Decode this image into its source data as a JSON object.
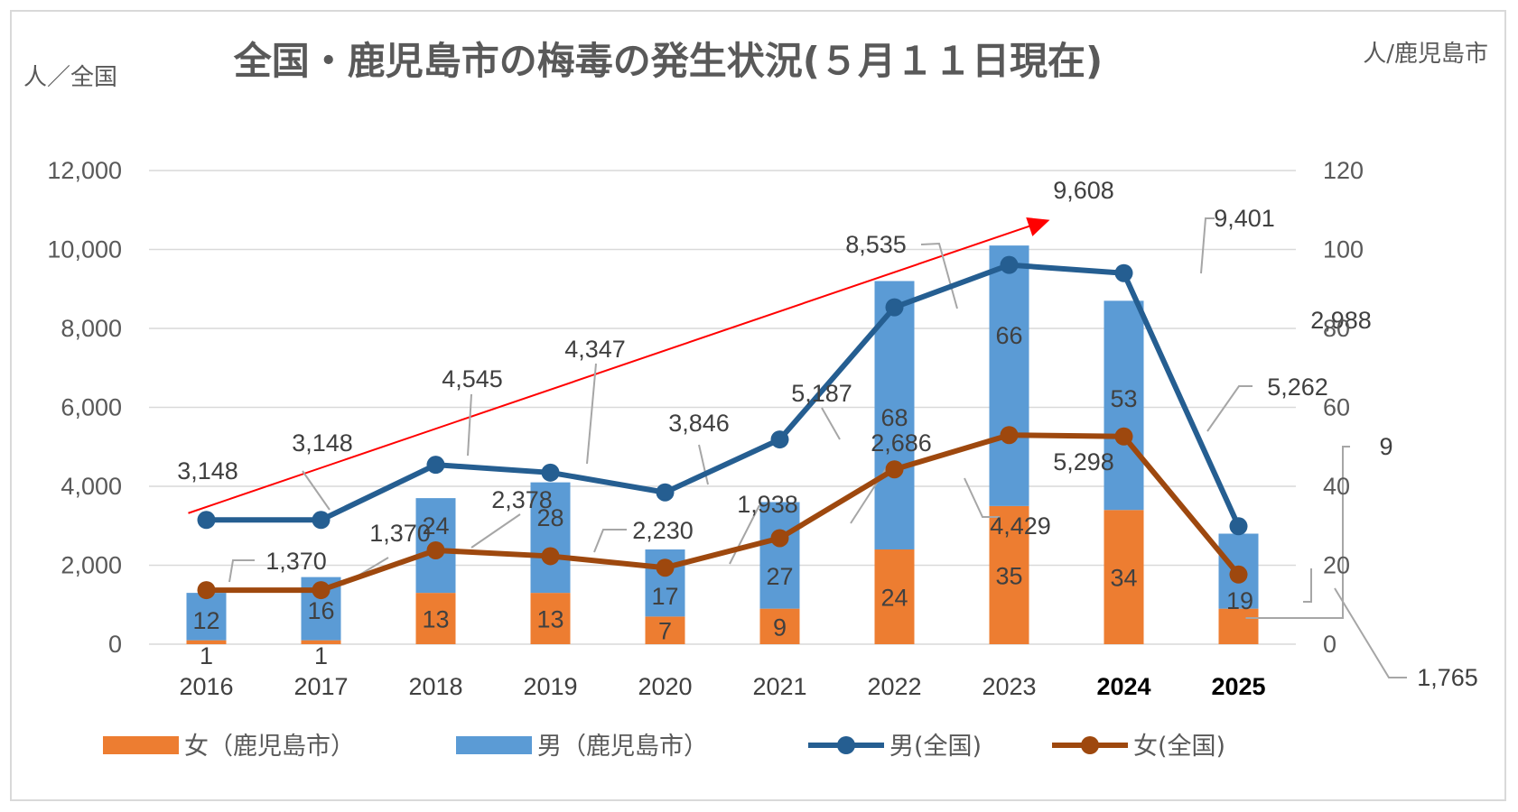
{
  "title": "全国・鹿児島市の梅毒の発生状況(５月１１日現在)",
  "left_axis_unit": "人／全国",
  "right_axis_unit": "人/鹿児島市",
  "chart_data": {
    "type": "bar+line",
    "categories": [
      "2016",
      "2017",
      "2018",
      "2019",
      "2020",
      "2021",
      "2022",
      "2023",
      "2024",
      "2025"
    ],
    "bold_categories": [
      "2024",
      "2025"
    ],
    "left_axis": {
      "min": 0,
      "max": 12000,
      "ticks": [
        "0",
        "2,000",
        "4,000",
        "6,000",
        "8,000",
        "10,000",
        "12,000"
      ]
    },
    "right_axis": {
      "min": 0,
      "max": 120,
      "ticks": [
        "0",
        "20",
        "40",
        "60",
        "80",
        "100",
        "120"
      ]
    },
    "grid": true,
    "legend_position": "bottom",
    "bar_series": [
      {
        "name": "女（鹿児島市）",
        "axis": "right",
        "color": "#ed7d31",
        "values": [
          1,
          1,
          13,
          13,
          7,
          9,
          24,
          35,
          34,
          9
        ],
        "labels": [
          "1",
          "1",
          "13",
          "13",
          "7",
          "9",
          "24",
          "35",
          "34",
          "9"
        ]
      },
      {
        "name": "男（鹿児島市）",
        "axis": "right",
        "color": "#5b9bd5",
        "values": [
          12,
          16,
          24,
          28,
          17,
          27,
          68,
          66,
          53,
          19
        ],
        "labels": [
          "12",
          "16",
          "24",
          "28",
          "17",
          "27",
          "68",
          "66",
          "53",
          "19"
        ]
      }
    ],
    "line_series": [
      {
        "name": "男(全国)",
        "axis": "left",
        "color": "#255e91",
        "values": [
          3148,
          3148,
          4545,
          4347,
          3846,
          5187,
          8535,
          9608,
          9401,
          2988
        ],
        "labels": [
          "3,148",
          "3,148",
          "4,545",
          "4,347",
          "3,846",
          "5,187",
          "8,535",
          "9,608",
          "9,401",
          "2,988"
        ]
      },
      {
        "name": "女(全国)",
        "axis": "left",
        "color": "#9e480e",
        "values": [
          1370,
          1370,
          2378,
          2230,
          1938,
          2686,
          4429,
          5298,
          5262,
          1765
        ],
        "labels": [
          "1,370",
          "1,370",
          "2,378",
          "2,230",
          "1,938",
          "2,686",
          "4,429",
          "5,298",
          "5,262",
          "1,765"
        ]
      }
    ],
    "trend_arrow": {
      "color": "#ff0000"
    }
  }
}
